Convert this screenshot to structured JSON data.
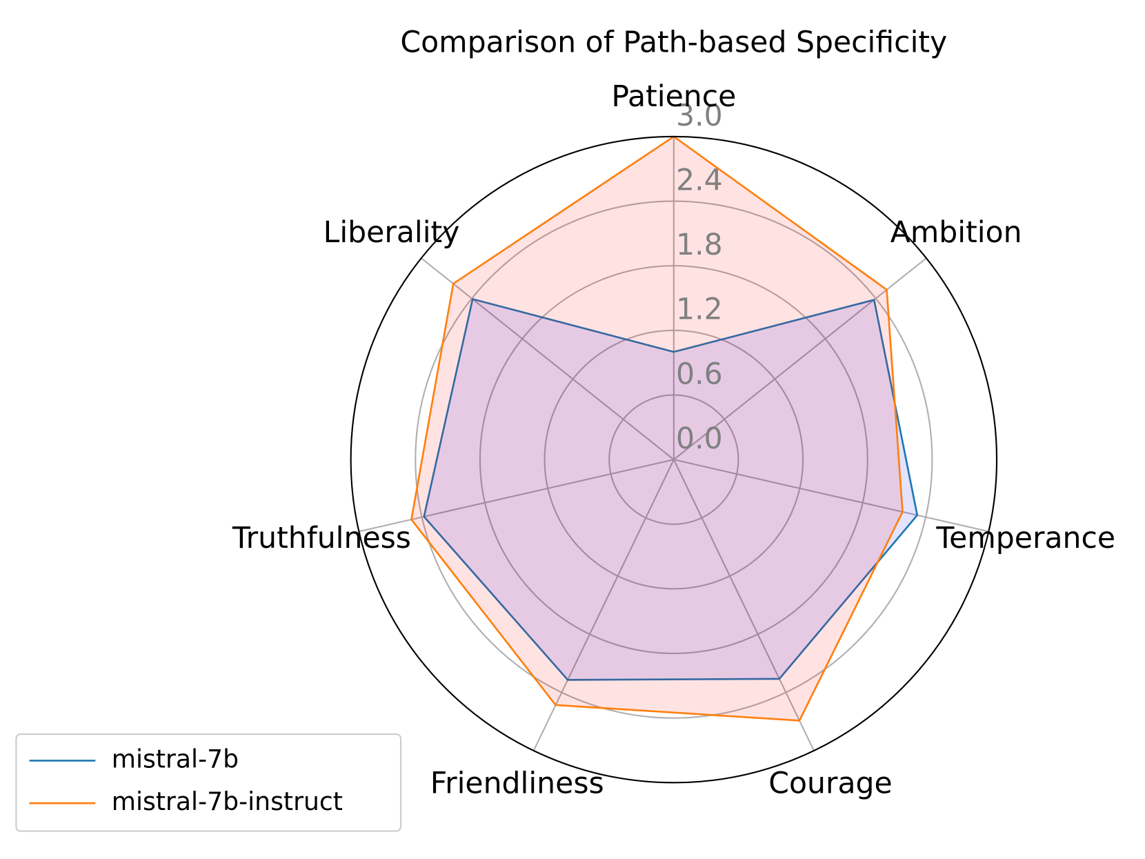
{
  "chart_data": {
    "type": "radar",
    "title": "Comparison of Path-based Specificity",
    "categories": [
      "Patience",
      "Ambition",
      "Temperance",
      "Courage",
      "Friendliness",
      "Truthfulness",
      "Liberality"
    ],
    "series": [
      {
        "name": "mistral-7b",
        "color": "#1f77b4",
        "fill": "#0000ff",
        "values": [
          1.0,
          2.38,
          2.32,
          2.26,
          2.27,
          2.38,
          2.39
        ]
      },
      {
        "name": "mistral-7b-instruct",
        "color": "#ff7f0e",
        "fill": "#ff0000",
        "values": [
          3.0,
          2.53,
          2.18,
          2.69,
          2.53,
          2.5,
          2.62
        ]
      }
    ],
    "ylim": [
      0,
      3
    ],
    "yticks": [
      {
        "value": 0,
        "label": "0.0"
      },
      0.6,
      1.2,
      1.8,
      2.4,
      {
        "value": 3,
        "label": "3.0"
      }
    ],
    "grid": true,
    "legend": "lower left"
  }
}
